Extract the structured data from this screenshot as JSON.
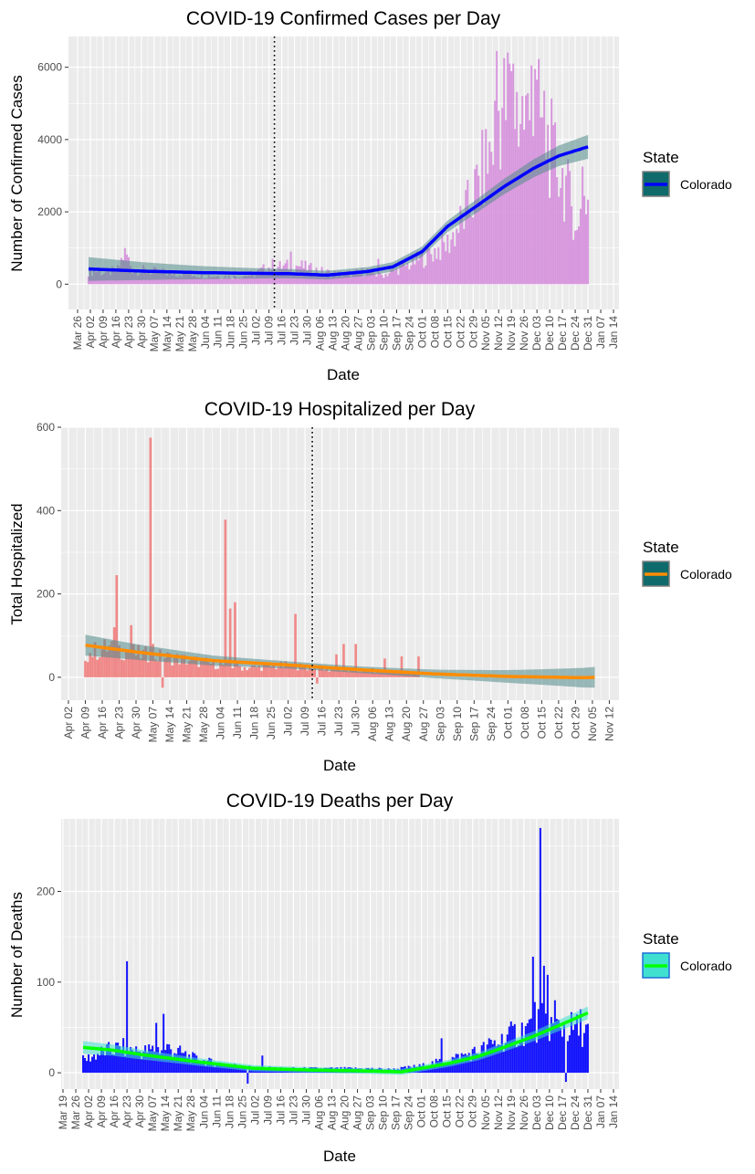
{
  "chart_data": [
    {
      "type": "bar",
      "title": "COVID-19 Confirmed Cases per Day",
      "xlabel": "Date",
      "ylabel": "Number of Confirmed Cases",
      "x_range": [
        "2020-03-21",
        "2021-01-17"
      ],
      "ylim": [
        -700,
        6850
      ],
      "y_ticks": [
        0,
        2000,
        4000,
        6000
      ],
      "x_tick_labels": [
        "Mar 26",
        "Apr 02",
        "Apr 09",
        "Apr 16",
        "Apr 23",
        "Apr 30",
        "May 07",
        "May 14",
        "May 21",
        "May 28",
        "Jun 04",
        "Jun 11",
        "Jun 18",
        "Jun 25",
        "Jul 02",
        "Jul 09",
        "Jul 16",
        "Jul 23",
        "Jul 30",
        "Aug 06",
        "Aug 13",
        "Aug 20",
        "Aug 27",
        "Sep 03",
        "Sep 10",
        "Sep 17",
        "Sep 24",
        "Oct 01",
        "Oct 08",
        "Oct 15",
        "Oct 22",
        "Oct 29",
        "Nov 05",
        "Nov 12",
        "Nov 19",
        "Nov 26",
        "Dec 03",
        "Dec 10",
        "Dec 17",
        "Dec 24",
        "Dec 31",
        "Jan 07",
        "Jan 14"
      ],
      "vline_date": "2020-07-12",
      "bar_color": "#d58fdb",
      "series": [
        {
          "name": "Colorado",
          "date_range": [
            "2020-04-01",
            "2020-12-31"
          ],
          "knots": [
            [
              "2020-04-01",
              380
            ],
            [
              "2020-04-05",
              400
            ],
            [
              "2020-04-10",
              330
            ],
            [
              "2020-04-17",
              420
            ],
            [
              "2020-04-21",
              980
            ],
            [
              "2020-04-25",
              450
            ],
            [
              "2020-05-05",
              380
            ],
            [
              "2020-05-15",
              330
            ],
            [
              "2020-05-25",
              320
            ],
            [
              "2020-06-05",
              260
            ],
            [
              "2020-06-20",
              230
            ],
            [
              "2020-07-01",
              300
            ],
            [
              "2020-07-08",
              500
            ],
            [
              "2020-07-15",
              520
            ],
            [
              "2020-07-25",
              560
            ],
            [
              "2020-08-05",
              400
            ],
            [
              "2020-08-15",
              300
            ],
            [
              "2020-08-25",
              320
            ],
            [
              "2020-09-01",
              400
            ],
            [
              "2020-09-08",
              250
            ],
            [
              "2020-09-15",
              380
            ],
            [
              "2020-09-25",
              620
            ],
            [
              "2020-10-05",
              900
            ],
            [
              "2020-10-15",
              1200
            ],
            [
              "2020-10-22",
              1800
            ],
            [
              "2020-10-29",
              2600
            ],
            [
              "2020-11-03",
              3300
            ],
            [
              "2020-11-08",
              4000
            ],
            [
              "2020-11-12",
              5200
            ],
            [
              "2020-11-17",
              5400
            ],
            [
              "2020-11-22",
              5300
            ],
            [
              "2020-11-28",
              4900
            ],
            [
              "2020-12-03",
              5100
            ],
            [
              "2020-12-10",
              4100
            ],
            [
              "2020-12-15",
              3500
            ],
            [
              "2020-12-20",
              2700
            ],
            [
              "2020-12-24",
              2000
            ],
            [
              "2020-12-28",
              2600
            ],
            [
              "2020-12-31",
              2500
            ]
          ],
          "spikes": [
            [
              "2020-04-21",
              1000
            ],
            [
              "2020-07-11",
              700
            ],
            [
              "2020-07-21",
              900
            ],
            [
              "2020-09-07",
              700
            ],
            [
              "2020-11-11",
              6450
            ],
            [
              "2020-11-18",
              6100
            ],
            [
              "2020-11-20",
              6100
            ],
            [
              "2020-11-30",
              6050
            ],
            [
              "2020-12-02",
              5950
            ],
            [
              "2020-12-07",
              5350
            ],
            [
              "2020-12-12",
              4400
            ],
            [
              "2020-12-19",
              3000
            ],
            [
              "2020-12-28",
              3250
            ]
          ],
          "dips": [
            [
              "2020-12-25",
              1500
            ],
            [
              "2020-12-26",
              1600
            ]
          ],
          "trend": [
            [
              "2020-04-01",
              420
            ],
            [
              "2020-05-01",
              360
            ],
            [
              "2020-06-01",
              320
            ],
            [
              "2020-07-01",
              300
            ],
            [
              "2020-07-20",
              290
            ],
            [
              "2020-08-10",
              250
            ],
            [
              "2020-09-01",
              350
            ],
            [
              "2020-09-15",
              480
            ],
            [
              "2020-10-01",
              900
            ],
            [
              "2020-10-15",
              1600
            ],
            [
              "2020-11-01",
              2200
            ],
            [
              "2020-11-15",
              2700
            ],
            [
              "2020-12-01",
              3200
            ],
            [
              "2020-12-15",
              3550
            ],
            [
              "2020-12-31",
              3800
            ]
          ],
          "ci_halfwidth_ends": 330,
          "ci_halfwidth_mid": 120,
          "line_color": "#0000ff",
          "fill_color": "#528b8b"
        }
      ]
    },
    {
      "type": "bar",
      "title": "COVID-19 Hospitalized per Day",
      "xlabel": "Date",
      "ylabel": "Total Hospitalized",
      "x_range": [
        "2020-03-30",
        "2020-11-16"
      ],
      "ylim": [
        -55,
        600
      ],
      "y_ticks": [
        0,
        200,
        400,
        600
      ],
      "x_tick_labels": [
        "Apr 02",
        "Apr 09",
        "Apr 16",
        "Apr 23",
        "Apr 30",
        "May 07",
        "May 14",
        "May 21",
        "May 28",
        "Jun 04",
        "Jun 11",
        "Jun 18",
        "Jun 25",
        "Jul 02",
        "Jul 09",
        "Jul 16",
        "Jul 23",
        "Jul 30",
        "Aug 06",
        "Aug 13",
        "Aug 20",
        "Aug 27",
        "Sep 03",
        "Sep 10",
        "Sep 17",
        "Sep 24",
        "Oct 01",
        "Oct 08",
        "Oct 15",
        "Oct 22",
        "Oct 29",
        "Nov 05",
        "Nov 12"
      ],
      "vline_date": "2020-07-12",
      "bar_color": "#f08080",
      "series": [
        {
          "name": "Colorado",
          "date_range": [
            "2020-04-09",
            "2020-08-25"
          ],
          "knots": [
            [
              "2020-04-09",
              60
            ],
            [
              "2020-04-20",
              80
            ],
            [
              "2020-05-01",
              60
            ],
            [
              "2020-05-15",
              50
            ],
            [
              "2020-06-01",
              35
            ],
            [
              "2020-06-15",
              25
            ],
            [
              "2020-07-01",
              30
            ],
            [
              "2020-07-10",
              25
            ],
            [
              "2020-07-20",
              20
            ],
            [
              "2020-08-01",
              18
            ],
            [
              "2020-08-15",
              15
            ],
            [
              "2020-08-25",
              12
            ]
          ],
          "spikes": [
            [
              "2020-04-21",
              120
            ],
            [
              "2020-04-22",
              245
            ],
            [
              "2020-04-28",
              125
            ],
            [
              "2020-05-06",
              575
            ],
            [
              "2020-05-07",
              80
            ],
            [
              "2020-06-06",
              378
            ],
            [
              "2020-06-08",
              165
            ],
            [
              "2020-06-10",
              180
            ],
            [
              "2020-07-05",
              152
            ],
            [
              "2020-07-22",
              55
            ],
            [
              "2020-07-25",
              80
            ],
            [
              "2020-07-30",
              80
            ],
            [
              "2020-08-11",
              45
            ],
            [
              "2020-08-18",
              50
            ],
            [
              "2020-08-25",
              50
            ]
          ],
          "dips": [
            [
              "2020-05-11",
              -25
            ],
            [
              "2020-07-14",
              -15
            ]
          ],
          "trend": [
            [
              "2020-04-09",
              77
            ],
            [
              "2020-05-01",
              60
            ],
            [
              "2020-06-01",
              40
            ],
            [
              "2020-07-01",
              30
            ],
            [
              "2020-08-01",
              18
            ],
            [
              "2020-09-01",
              8
            ],
            [
              "2020-10-01",
              2
            ],
            [
              "2020-11-01",
              -1
            ],
            [
              "2020-11-06",
              0
            ]
          ],
          "ci_halfwidth_ends": 25,
          "ci_halfwidth_mid": 8,
          "line_color": "#ff8c00",
          "fill_color": "#528b8b"
        }
      ]
    },
    {
      "type": "bar",
      "title": "COVID-19 Deaths per Day",
      "xlabel": "Date",
      "ylabel": "Number of Deaths",
      "x_range": [
        "2020-03-18",
        "2021-01-17"
      ],
      "ylim": [
        -18,
        280
      ],
      "y_ticks": [
        0,
        100,
        200
      ],
      "x_tick_labels": [
        "Mar 19",
        "Mar 26",
        "Apr 02",
        "Apr 09",
        "Apr 16",
        "Apr 23",
        "Apr 30",
        "May 07",
        "May 14",
        "May 21",
        "May 28",
        "Jun 04",
        "Jun 11",
        "Jun 18",
        "Jun 25",
        "Jul 02",
        "Jul 09",
        "Jul 16",
        "Jul 23",
        "Jul 30",
        "Aug 06",
        "Aug 13",
        "Aug 20",
        "Aug 27",
        "Sep 03",
        "Sep 10",
        "Sep 17",
        "Sep 24",
        "Oct 01",
        "Oct 08",
        "Oct 15",
        "Oct 22",
        "Oct 29",
        "Nov 05",
        "Nov 12",
        "Nov 19",
        "Nov 26",
        "Dec 03",
        "Dec 10",
        "Dec 17",
        "Dec 24",
        "Dec 31",
        "Jan 07",
        "Jan 14"
      ],
      "vline_date": null,
      "bar_color": "#0000ff",
      "series": [
        {
          "name": "Colorado",
          "date_range": [
            "2020-03-30",
            "2020-12-31"
          ],
          "knots": [
            [
              "2020-03-30",
              15
            ],
            [
              "2020-04-10",
              25
            ],
            [
              "2020-04-20",
              30
            ],
            [
              "2020-05-01",
              25
            ],
            [
              "2020-05-15",
              30
            ],
            [
              "2020-06-01",
              15
            ],
            [
              "2020-06-15",
              10
            ],
            [
              "2020-07-01",
              6
            ],
            [
              "2020-07-15",
              5
            ],
            [
              "2020-08-01",
              5
            ],
            [
              "2020-09-01",
              5
            ],
            [
              "2020-09-15",
              4
            ],
            [
              "2020-10-01",
              8
            ],
            [
              "2020-10-15",
              15
            ],
            [
              "2020-11-01",
              25
            ],
            [
              "2020-11-15",
              40
            ],
            [
              "2020-11-25",
              50
            ],
            [
              "2020-12-05",
              60
            ],
            [
              "2020-12-15",
              55
            ],
            [
              "2020-12-31",
              50
            ]
          ],
          "spikes": [
            [
              "2020-04-23",
              123
            ],
            [
              "2020-05-13",
              65
            ],
            [
              "2020-05-09",
              55
            ],
            [
              "2020-07-06",
              19
            ],
            [
              "2020-10-12",
              38
            ],
            [
              "2020-12-01",
              128
            ],
            [
              "2020-12-02",
              78
            ],
            [
              "2020-12-05",
              270
            ],
            [
              "2020-12-07",
              118
            ],
            [
              "2020-12-09",
              108
            ],
            [
              "2020-12-13",
              80
            ],
            [
              "2020-12-19",
              95
            ],
            [
              "2020-12-27",
              70
            ]
          ],
          "dips": [
            [
              "2020-06-28",
              -12
            ],
            [
              "2020-12-19",
              -10
            ]
          ],
          "trend": [
            [
              "2020-03-30",
              28
            ],
            [
              "2020-04-15",
              25
            ],
            [
              "2020-05-01",
              20
            ],
            [
              "2020-06-01",
              12
            ],
            [
              "2020-07-01",
              5
            ],
            [
              "2020-08-01",
              3
            ],
            [
              "2020-09-01",
              2
            ],
            [
              "2020-09-20",
              1
            ],
            [
              "2020-10-15",
              10
            ],
            [
              "2020-11-01",
              18
            ],
            [
              "2020-11-15",
              28
            ],
            [
              "2020-12-01",
              40
            ],
            [
              "2020-12-15",
              52
            ],
            [
              "2020-12-31",
              66
            ]
          ],
          "ci_halfwidth_ends": 7,
          "ci_halfwidth_mid": 3,
          "line_color": "#00ff00",
          "fill_color": "#40e0d0"
        }
      ]
    }
  ],
  "legend": {
    "title": "State",
    "charts": [
      {
        "label": "Colorado",
        "key_fill": "#0f6b6b",
        "key_border": "#7f7f7f",
        "line": "#0000ff"
      },
      {
        "label": "Colorado",
        "key_fill": "#0f6b6b",
        "key_border": "#7f7f7f",
        "line": "#ff8c00"
      },
      {
        "label": "Colorado",
        "key_fill": "#40e0d0",
        "key_border": "#1e6fd9",
        "line": "#00ff00"
      }
    ]
  }
}
